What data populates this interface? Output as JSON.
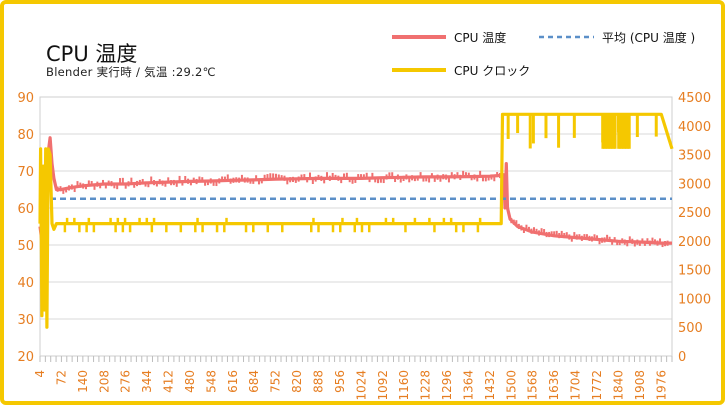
{
  "chart_data": {
    "type": "line",
    "title": "CPU 温度",
    "subtitle": "Blender 実行時 / 気温 :29.2℃",
    "x_ticks": [
      "4",
      "72",
      "140",
      "208",
      "276",
      "344",
      "412",
      "480",
      "548",
      "616",
      "684",
      "752",
      "820",
      "888",
      "956",
      "1024",
      "1092",
      "1160",
      "1228",
      "1296",
      "1364",
      "1432",
      "1500",
      "1568",
      "1636",
      "1704",
      "1772",
      "1840",
      "1908",
      "1976"
    ],
    "xlim": [
      4,
      2010
    ],
    "y_left": {
      "min": 20,
      "max": 90,
      "ticks": [
        "20",
        "30",
        "40",
        "50",
        "60",
        "70",
        "80",
        "90"
      ],
      "color": "#e67e22"
    },
    "y_right": {
      "min": 0,
      "max": 4500,
      "ticks": [
        "0",
        "500",
        "1000",
        "1500",
        "2000",
        "2500",
        "3000",
        "3500",
        "4000",
        "4500"
      ],
      "color": "#e67e22"
    },
    "grid": true,
    "legend_position": "top-right",
    "series": [
      {
        "name": "CPU 温度",
        "axis": "left",
        "color": "#f07070",
        "points": [
          [
            4,
            55
          ],
          [
            10,
            51
          ],
          [
            16,
            62
          ],
          [
            22,
            66
          ],
          [
            30,
            75
          ],
          [
            36,
            79
          ],
          [
            42,
            72
          ],
          [
            48,
            68
          ],
          [
            56,
            65
          ],
          [
            72,
            65
          ],
          [
            100,
            65.5
          ],
          [
            140,
            66
          ],
          [
            208,
            66.5
          ],
          [
            276,
            66.5
          ],
          [
            344,
            66.8
          ],
          [
            412,
            67
          ],
          [
            480,
            67.2
          ],
          [
            548,
            67.3
          ],
          [
            616,
            67.5
          ],
          [
            684,
            67.6
          ],
          [
            752,
            67.8
          ],
          [
            820,
            67.9
          ],
          [
            888,
            68
          ],
          [
            956,
            68
          ],
          [
            1024,
            68
          ],
          [
            1092,
            68.2
          ],
          [
            1160,
            68.3
          ],
          [
            1228,
            68.4
          ],
          [
            1296,
            68.4
          ],
          [
            1364,
            68.5
          ],
          [
            1432,
            68.6
          ],
          [
            1466,
            68.8
          ],
          [
            1476,
            69
          ],
          [
            1480,
            60
          ],
          [
            1484,
            72
          ],
          [
            1488,
            60
          ],
          [
            1496,
            57
          ],
          [
            1520,
            55
          ],
          [
            1568,
            53.5
          ],
          [
            1636,
            52.5
          ],
          [
            1704,
            52
          ],
          [
            1772,
            51.5
          ],
          [
            1840,
            51
          ],
          [
            1908,
            50.8
          ],
          [
            1976,
            50.5
          ],
          [
            2010,
            50.5
          ]
        ]
      },
      {
        "name": "平均 (CPU 温度 )",
        "axis": "left",
        "color": "#5b8fc8",
        "dashed": true,
        "points": [
          [
            4,
            62.5
          ],
          [
            2010,
            62.5
          ]
        ]
      },
      {
        "name": "CPU クロック",
        "axis": "right",
        "color": "#f5c800",
        "points": [
          [
            4,
            2300
          ],
          [
            6,
            3600
          ],
          [
            10,
            700
          ],
          [
            14,
            3300
          ],
          [
            18,
            800
          ],
          [
            22,
            3600
          ],
          [
            26,
            500
          ],
          [
            30,
            3600
          ],
          [
            36,
            3500
          ],
          [
            42,
            2300
          ],
          [
            48,
            2200
          ],
          [
            56,
            2300
          ],
          [
            72,
            2300
          ],
          [
            140,
            2300
          ],
          [
            208,
            2300
          ],
          [
            276,
            2300
          ],
          [
            344,
            2300
          ],
          [
            412,
            2300
          ],
          [
            480,
            2300
          ],
          [
            548,
            2300
          ],
          [
            616,
            2300
          ],
          [
            684,
            2300
          ],
          [
            752,
            2300
          ],
          [
            820,
            2300
          ],
          [
            888,
            2300
          ],
          [
            956,
            2300
          ],
          [
            1024,
            2300
          ],
          [
            1092,
            2300
          ],
          [
            1160,
            2300
          ],
          [
            1228,
            2300
          ],
          [
            1296,
            2300
          ],
          [
            1364,
            2300
          ],
          [
            1432,
            2300
          ],
          [
            1468,
            2300
          ],
          [
            1472,
            4200
          ],
          [
            1500,
            4200
          ],
          [
            1568,
            4200
          ],
          [
            1636,
            4200
          ],
          [
            1704,
            4200
          ],
          [
            1772,
            4200
          ],
          [
            1840,
            4200
          ],
          [
            1908,
            4200
          ],
          [
            1976,
            4200
          ],
          [
            2010,
            3600
          ]
        ]
      }
    ]
  }
}
